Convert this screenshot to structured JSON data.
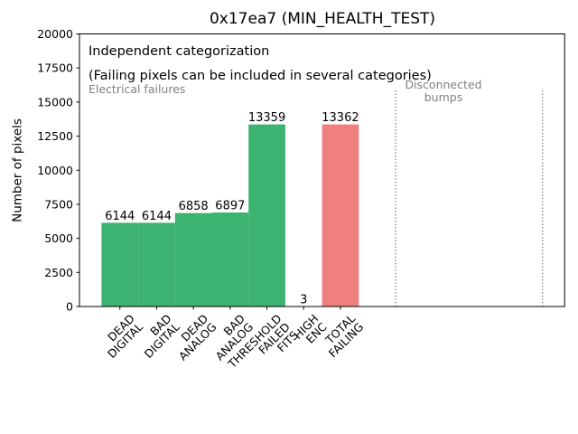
{
  "chart_data": {
    "type": "bar",
    "title": "0x17ea7 (MIN_HEALTH_TEST)",
    "ylabel": "Number of pixels",
    "xlabel": "",
    "ylim": [
      0,
      20000
    ],
    "ytick_step": 2500,
    "xlim": [
      -1.1,
      12.1
    ],
    "grid": false,
    "legend": null,
    "categories": [
      "DEAD\nDIGITAL",
      "BAD\nDIGITAL",
      "DEAD\nANALOG",
      "BAD\nANALOG",
      "THRESHOLD\nFAILED\nFITS",
      "HIGH\nENC",
      "TOTAL\nFAILING"
    ],
    "values": [
      6144,
      6144,
      6858,
      6897,
      13359,
      3,
      13362
    ],
    "bar_colors": [
      "#3cb371",
      "#3cb371",
      "#3cb371",
      "#3cb371",
      "#3cb371",
      "#3cb371",
      "#f08080"
    ],
    "bar_width": 1.0,
    "value_label_color": "#000000",
    "axis_color": "#000000",
    "annotations": [
      {
        "text": "Independent categorization",
        "color": "#000000"
      },
      {
        "text": "(Failing pixels can be included in several categories)",
        "color": "#000000"
      },
      {
        "text": "Electrical failures",
        "color": "#808080"
      },
      {
        "text": "Disconnected\nbumps",
        "color": "#808080"
      }
    ],
    "separators": {
      "positions": [
        7.5,
        11.5
      ],
      "y_max": 16000,
      "color": "#7f7f7f",
      "style": "dotted"
    }
  }
}
